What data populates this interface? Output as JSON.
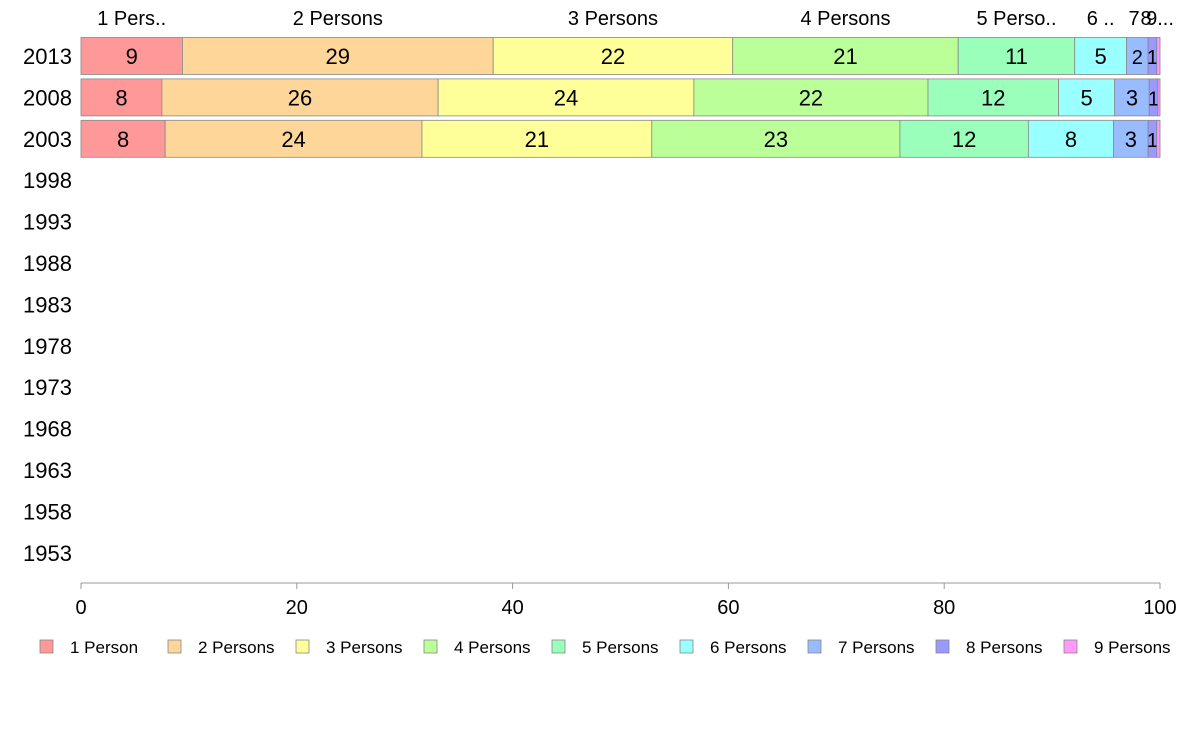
{
  "chart_data": {
    "type": "bar",
    "orientation": "horizontal",
    "stacked": true,
    "title": "",
    "xlabel": "",
    "ylabel": "",
    "xlim": [
      0,
      100
    ],
    "x_ticks": [
      0,
      20,
      40,
      60,
      80,
      100
    ],
    "categories": [
      "2013",
      "2008",
      "2003",
      "1998",
      "1993",
      "1988",
      "1983",
      "1978",
      "1973",
      "1968",
      "1963",
      "1958",
      "1953"
    ],
    "top_labels": [
      "1 Pers..",
      "2 Persons",
      "3 Persons",
      "4 Persons",
      "5 Perso..",
      "6 ..",
      "7",
      "8",
      "9..."
    ],
    "series": [
      {
        "name": "1 Person",
        "color": "#FF9999",
        "values": [
          9.4,
          7.5,
          7.8,
          null,
          null,
          null,
          null,
          null,
          null,
          null,
          null,
          null,
          null
        ],
        "labels": [
          "9",
          "8",
          "8"
        ]
      },
      {
        "name": "2 Persons",
        "color": "#FFD699",
        "values": [
          28.8,
          25.6,
          23.8,
          null,
          null,
          null,
          null,
          null,
          null,
          null,
          null,
          null,
          null
        ],
        "labels": [
          "29",
          "26",
          "24"
        ]
      },
      {
        "name": "3 Persons",
        "color": "#FFFF99",
        "values": [
          22.2,
          23.7,
          21.3,
          null,
          null,
          null,
          null,
          null,
          null,
          null,
          null,
          null,
          null
        ],
        "labels": [
          "22",
          "24",
          "21"
        ]
      },
      {
        "name": "4 Persons",
        "color": "#BBFF99",
        "values": [
          20.9,
          21.7,
          23.0,
          null,
          null,
          null,
          null,
          null,
          null,
          null,
          null,
          null,
          null
        ],
        "labels": [
          "21",
          "22",
          "23"
        ]
      },
      {
        "name": "5 Persons",
        "color": "#99FFBB",
        "values": [
          10.8,
          12.1,
          11.9,
          null,
          null,
          null,
          null,
          null,
          null,
          null,
          null,
          null,
          null
        ],
        "labels": [
          "11",
          "12",
          "12"
        ]
      },
      {
        "name": "6 Persons",
        "color": "#99FFFF",
        "values": [
          4.8,
          5.2,
          7.9,
          null,
          null,
          null,
          null,
          null,
          null,
          null,
          null,
          null,
          null
        ],
        "labels": [
          "5",
          "5",
          "8"
        ]
      },
      {
        "name": "7 Persons",
        "color": "#99BBFF",
        "values": [
          2.0,
          3.2,
          3.2,
          null,
          null,
          null,
          null,
          null,
          null,
          null,
          null,
          null,
          null
        ],
        "labels": [
          "2",
          "3",
          "3"
        ]
      },
      {
        "name": "8 Persons",
        "color": "#9999FF",
        "values": [
          0.8,
          0.8,
          0.8,
          null,
          null,
          null,
          null,
          null,
          null,
          null,
          null,
          null,
          null
        ],
        "labels": [
          "1",
          "1",
          "1"
        ]
      },
      {
        "name": "9 Persons",
        "color": "#FF99FF",
        "values": [
          0.3,
          0.2,
          0.3,
          null,
          null,
          null,
          null,
          null,
          null,
          null,
          null,
          null,
          null
        ],
        "labels": [
          "",
          "",
          ""
        ]
      }
    ],
    "grid": false,
    "legend_position": "bottom"
  }
}
